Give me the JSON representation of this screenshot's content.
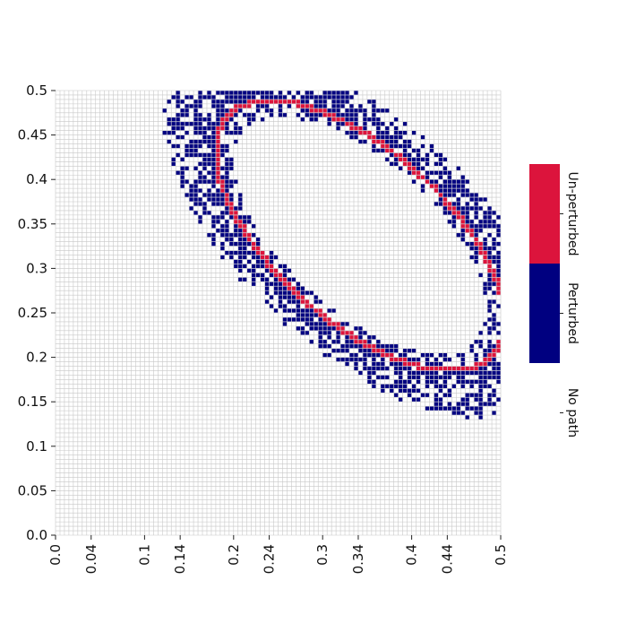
{
  "chart_data": {
    "type": "heatmap",
    "title": "",
    "xlabel": "",
    "ylabel": "",
    "x_tick_labels": [
      "0.0",
      "0.04",
      "0.1",
      "0.14",
      "0.2",
      "0.24",
      "0.3",
      "0.34",
      "0.4",
      "0.44",
      "0.5"
    ],
    "y_tick_labels": [
      "0.0",
      "0.05",
      "0.1",
      "0.15",
      "0.2",
      "0.25",
      "0.3",
      "0.35",
      "0.4",
      "0.45",
      "0.5"
    ],
    "xlim": [
      0.0,
      0.5
    ],
    "ylim": [
      0.0,
      0.5
    ],
    "grid_cells_per_axis": 100,
    "cell_size": 0.005,
    "grid": true,
    "colors": {
      "no_path": "#ffffff",
      "perturbed": "#000080",
      "unperturbed": "#dc143c",
      "gridline": "#c8c8c8"
    },
    "colorbar": {
      "placement": "right",
      "categories": [
        {
          "label": "Un-perturbed",
          "color": "#dc143c"
        },
        {
          "label": "Perturbed",
          "color": "#000080"
        },
        {
          "label": "No path",
          "color": "#ffffff"
        }
      ]
    },
    "path_unperturbed": {
      "description_free": true,
      "center": [
        0.342,
        0.337
      ],
      "angle_deg": -42,
      "semi_major": 0.2,
      "semi_minor": 0.096,
      "y_max": 0.5
    },
    "band_perturbed": {
      "center": [
        0.342,
        0.337
      ],
      "angle_deg": -42,
      "semi_major": 0.2,
      "semi_minor": 0.096,
      "inner_offset": 0.005,
      "outer_offset": 0.035,
      "density": 0.78,
      "y_max": 0.5
    }
  }
}
